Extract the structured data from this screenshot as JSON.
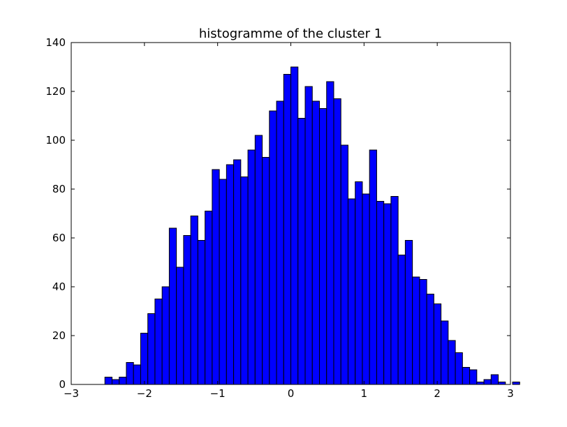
{
  "chart_data": {
    "type": "bar",
    "title": "histogramme of the cluster 1",
    "xlabel": "",
    "ylabel": "",
    "xlim": [
      -3,
      3
    ],
    "ylim": [
      0,
      140
    ],
    "grid": false,
    "bar_color": "#0000ff",
    "edge_color": "#000000",
    "xticks": [
      -3,
      -2,
      -1,
      0,
      1,
      2,
      3
    ],
    "xtick_labels": [
      "−3",
      "−2",
      "−1",
      "0",
      "1",
      "2",
      "3"
    ],
    "yticks": [
      0,
      20,
      40,
      60,
      80,
      100,
      120,
      140
    ],
    "ytick_labels": [
      "0",
      "20",
      "40",
      "60",
      "80",
      "100",
      "120",
      "140"
    ],
    "bin_start": -2.54,
    "bin_width": 0.0977,
    "values": [
      3,
      2,
      3,
      9,
      8,
      21,
      29,
      35,
      40,
      64,
      48,
      61,
      69,
      59,
      71,
      88,
      84,
      90,
      92,
      85,
      96,
      102,
      93,
      112,
      116,
      127,
      130,
      109,
      122,
      116,
      113,
      124,
      117,
      98,
      76,
      83,
      78,
      96,
      75,
      74,
      77,
      53,
      59,
      44,
      43,
      37,
      33,
      26,
      18,
      13,
      7,
      6,
      1,
      2,
      4,
      1,
      0,
      1
    ]
  }
}
